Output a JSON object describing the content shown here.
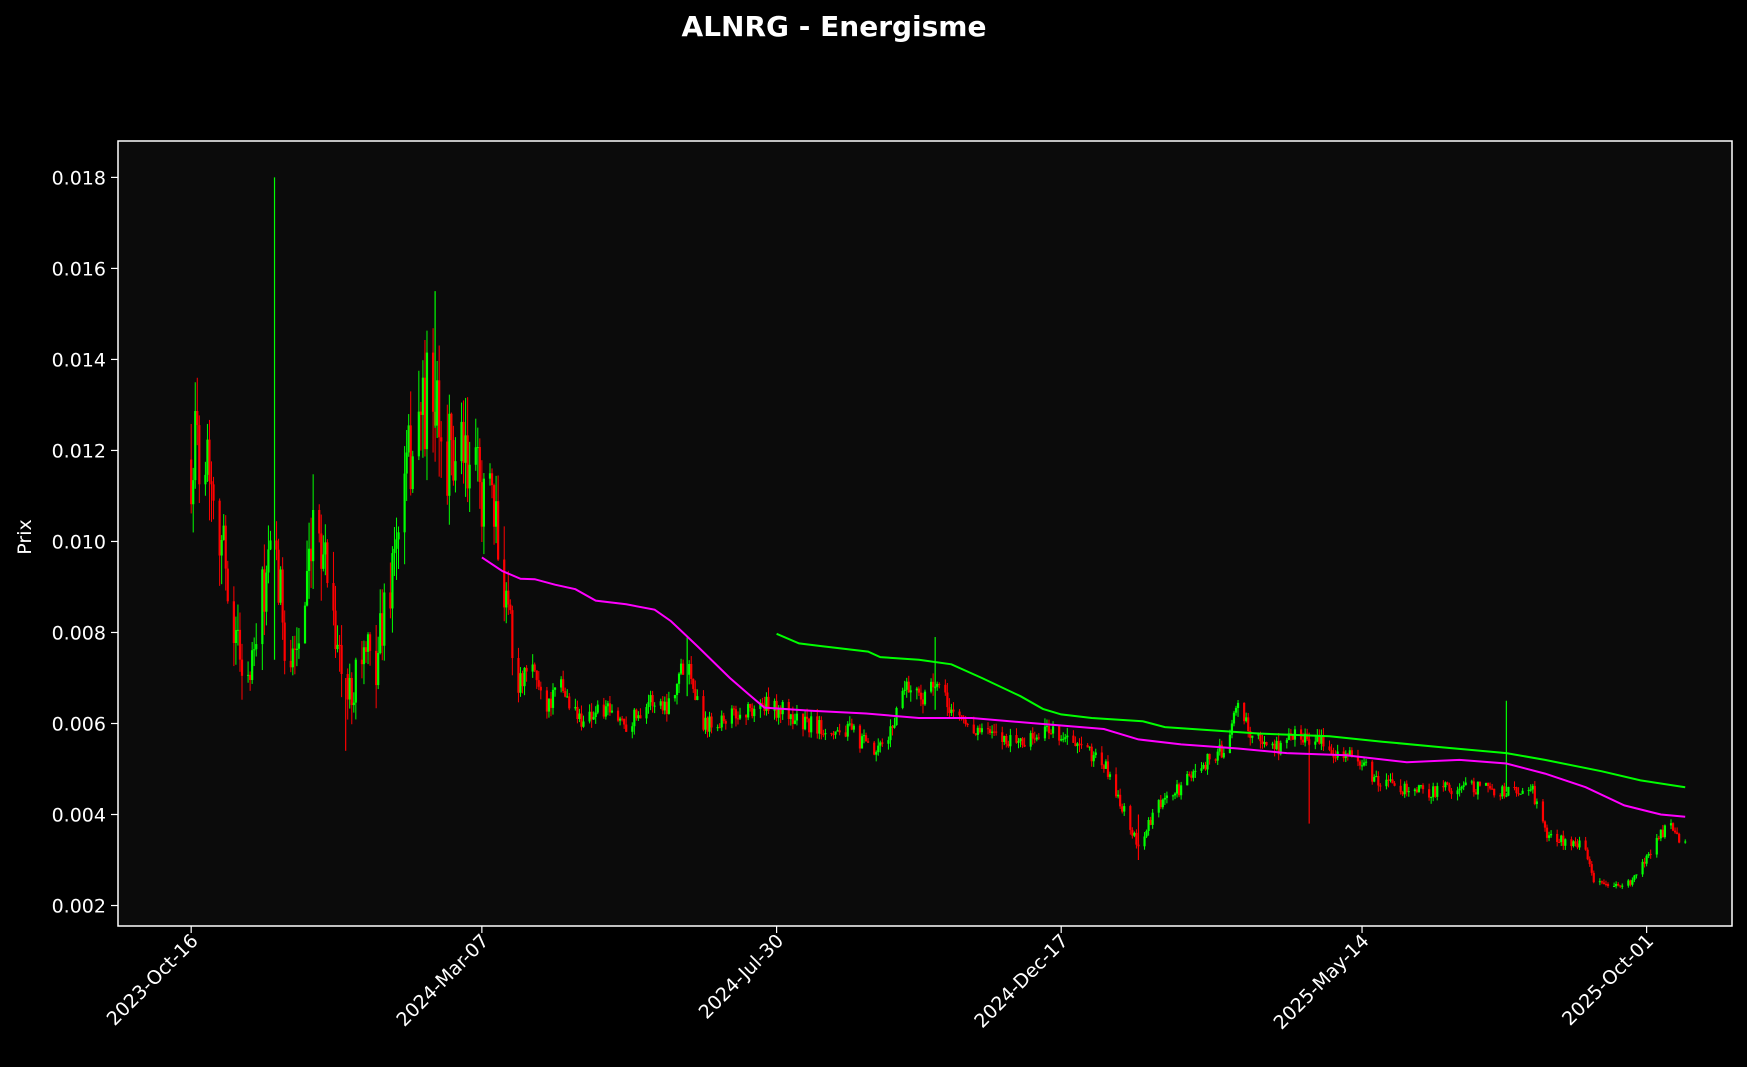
{
  "chart_data": {
    "type": "candlestick",
    "title": "ALNRG - Energisme",
    "ylabel": "Prix",
    "xlabel": "",
    "x_ticks": [
      "2023-Oct-16",
      "2024-Mar-07",
      "2024-Jul-30",
      "2024-Dec-17",
      "2025-May-14",
      "2025-Oct-01"
    ],
    "x_range": [
      "2023-Sep-10",
      "2025-Nov-12"
    ],
    "ylim": [
      0.00155,
      0.0188
    ],
    "y_ticks": [
      0.002,
      0.004,
      0.006,
      0.008,
      0.01,
      0.012,
      0.014,
      0.016,
      0.018
    ],
    "grid": false,
    "colors": {
      "background": "#000000",
      "plot_background": "#0b0b0b",
      "up": "#00ff00",
      "down": "#ff0000",
      "sma_short": "#ff00ff",
      "sma_long": "#00ff00",
      "axes": "#ffffff"
    },
    "series": [
      {
        "kind": "price_path",
        "points": [
          [
            "2023-Oct-16",
            0.0118
          ],
          [
            "2023-Oct-20",
            0.0123
          ],
          [
            "2023-Oct-25",
            0.0119
          ],
          [
            "2023-Oct-31",
            0.0101
          ],
          [
            "2023-Nov-07",
            0.0079
          ],
          [
            "2023-Nov-14",
            0.0069
          ],
          [
            "2023-Nov-21",
            0.009
          ],
          [
            "2023-Nov-26",
            0.0097
          ],
          [
            "2023-Dec-03",
            0.0074
          ],
          [
            "2023-Dec-10",
            0.008
          ],
          [
            "2023-Dec-17",
            0.0106
          ],
          [
            "2023-Dec-24",
            0.009
          ],
          [
            "2023-Dec-31",
            0.0063
          ],
          [
            "2024-Jan-07",
            0.0076
          ],
          [
            "2024-Jan-14",
            0.0072
          ],
          [
            "2024-Jan-22",
            0.0092
          ],
          [
            "2024-Jan-28",
            0.0108
          ],
          [
            "2024-Feb-03",
            0.0125
          ],
          [
            "2024-Feb-10",
            0.0132
          ],
          [
            "2024-Feb-17",
            0.012
          ],
          [
            "2024-Feb-24",
            0.0118
          ],
          [
            "2024-Mar-02",
            0.0114
          ],
          [
            "2024-Mar-09",
            0.0112
          ],
          [
            "2024-Mar-16",
            0.0097
          ],
          [
            "2024-Mar-21",
            0.0085
          ],
          [
            "2024-Mar-24",
            0.0068
          ],
          [
            "2024-Apr-01",
            0.0072
          ],
          [
            "2024-Apr-08",
            0.0064
          ],
          [
            "2024-Apr-15",
            0.0068
          ],
          [
            "2024-Apr-24",
            0.0061
          ],
          [
            "2024-May-05",
            0.0063
          ],
          [
            "2024-May-18",
            0.006
          ],
          [
            "2024-May-28",
            0.0065
          ],
          [
            "2024-Jun-06",
            0.0064
          ],
          [
            "2024-Jun-16",
            0.0075
          ],
          [
            "2024-Jun-24",
            0.006
          ],
          [
            "2024-Jul-02",
            0.0061
          ],
          [
            "2024-Jul-12",
            0.0062
          ],
          [
            "2024-Jul-22",
            0.0064
          ],
          [
            "2024-Aug-01",
            0.0063
          ],
          [
            "2024-Aug-12",
            0.006
          ],
          [
            "2024-Aug-24",
            0.0059
          ],
          [
            "2024-Sep-05",
            0.0058
          ],
          [
            "2024-Sep-17",
            0.0053
          ],
          [
            "2024-Sep-24",
            0.0058
          ],
          [
            "2024-Oct-01",
            0.0069
          ],
          [
            "2024-Oct-09",
            0.0066
          ],
          [
            "2024-Oct-16",
            0.0068
          ],
          [
            "2024-Oct-24",
            0.0063
          ],
          [
            "2024-Nov-03",
            0.0059
          ],
          [
            "2024-Nov-15",
            0.0057
          ],
          [
            "2024-Nov-30",
            0.0056
          ],
          [
            "2024-Dec-12",
            0.0059
          ],
          [
            "2024-Dec-24",
            0.0055
          ],
          [
            "2025-Jan-06",
            0.0052
          ],
          [
            "2025-Jan-14",
            0.0044
          ],
          [
            "2025-Jan-24",
            0.0033
          ],
          [
            "2025-Feb-03",
            0.0042
          ],
          [
            "2025-Feb-14",
            0.0046
          ],
          [
            "2025-Feb-24",
            0.0051
          ],
          [
            "2025-Mar-06",
            0.0054
          ],
          [
            "2025-Mar-14",
            0.0063
          ],
          [
            "2025-Mar-24",
            0.0056
          ],
          [
            "2025-Apr-03",
            0.0055
          ],
          [
            "2025-Apr-13",
            0.0058
          ],
          [
            "2025-Apr-22",
            0.0056
          ],
          [
            "2025-May-02",
            0.0054
          ],
          [
            "2025-May-12",
            0.0052
          ],
          [
            "2025-May-22",
            0.0047
          ],
          [
            "2025-Jun-02",
            0.0046
          ],
          [
            "2025-Jun-14",
            0.0045
          ],
          [
            "2025-Jun-28",
            0.0046
          ],
          [
            "2025-Jul-10",
            0.0046
          ],
          [
            "2025-Jul-24",
            0.0045
          ],
          [
            "2025-Aug-06",
            0.0045
          ],
          [
            "2025-Aug-12",
            0.0036
          ],
          [
            "2025-Aug-22",
            0.0034
          ],
          [
            "2025-Aug-31",
            0.0033
          ],
          [
            "2025-Sep-05",
            0.0026
          ],
          [
            "2025-Sep-12",
            0.0024
          ],
          [
            "2025-Sep-24",
            0.0025
          ],
          [
            "2025-Oct-02",
            0.0031
          ],
          [
            "2025-Oct-08",
            0.0036
          ],
          [
            "2025-Oct-14",
            0.0037
          ],
          [
            "2025-Oct-20",
            0.0033
          ]
        ]
      },
      {
        "kind": "spike",
        "points": [
          [
            "2023-Nov-26",
            0.018,
            0.0074
          ],
          [
            "2024-Feb-13",
            0.0155,
            0.0125
          ],
          [
            "2024-Jun-16",
            0.0079,
            0.0066
          ],
          [
            "2024-Oct-16",
            0.0079,
            0.0063
          ],
          [
            "2025-Apr-18",
            0.0038,
            0.0058
          ],
          [
            "2025-Jul-24",
            0.0065,
            0.0045
          ],
          [
            "2023-Dec-31",
            0.0054,
            0.007
          ],
          [
            "2025-Jan-24",
            0.003,
            0.004
          ]
        ]
      },
      {
        "name": "",
        "kind": "sma_short",
        "points": [
          [
            "2024-Mar-07",
            0.00965
          ],
          [
            "2024-Mar-17",
            0.00935
          ],
          [
            "2024-Mar-26",
            0.00918
          ],
          [
            "2024-Apr-02",
            0.00917
          ],
          [
            "2024-Apr-12",
            0.00905
          ],
          [
            "2024-Apr-22",
            0.00895
          ],
          [
            "2024-May-02",
            0.0087
          ],
          [
            "2024-May-17",
            0.00862
          ],
          [
            "2024-May-31",
            0.0085
          ],
          [
            "2024-Jun-08",
            0.00825
          ],
          [
            "2024-Jun-21",
            0.0077
          ],
          [
            "2024-Jul-07",
            0.007
          ],
          [
            "2024-Jul-16",
            0.00665
          ],
          [
            "2024-Jul-24",
            0.00635
          ],
          [
            "2024-Aug-16",
            0.00628
          ],
          [
            "2024-Sep-12",
            0.00622
          ],
          [
            "2024-Oct-08",
            0.00612
          ],
          [
            "2024-Nov-03",
            0.00612
          ],
          [
            "2024-Dec-05",
            0.006
          ],
          [
            "2025-Jan-07",
            0.00588
          ],
          [
            "2025-Jan-24",
            0.00565
          ],
          [
            "2025-Feb-14",
            0.00554
          ],
          [
            "2025-Mar-14",
            0.00545
          ],
          [
            "2025-Apr-07",
            0.00535
          ],
          [
            "2025-May-06",
            0.0053
          ],
          [
            "2025-Jun-05",
            0.00515
          ],
          [
            "2025-Jul-01",
            0.0052
          ],
          [
            "2025-Jul-24",
            0.00512
          ],
          [
            "2025-Aug-12",
            0.0049
          ],
          [
            "2025-Sep-01",
            0.0046
          ],
          [
            "2025-Sep-20",
            0.0042
          ],
          [
            "2025-Oct-08",
            0.004
          ],
          [
            "2025-Oct-20",
            0.00395
          ]
        ]
      },
      {
        "name": "",
        "kind": "sma_long",
        "points": [
          [
            "2024-Jul-30",
            0.00797
          ],
          [
            "2024-Aug-10",
            0.00776
          ],
          [
            "2024-Aug-21",
            0.0077
          ],
          [
            "2024-Sep-13",
            0.00758
          ],
          [
            "2024-Sep-19",
            0.00746
          ],
          [
            "2024-Oct-08",
            0.0074
          ],
          [
            "2024-Oct-24",
            0.0073
          ],
          [
            "2024-Nov-08",
            0.007
          ],
          [
            "2024-Nov-27",
            0.0066
          ],
          [
            "2024-Dec-08",
            0.00632
          ],
          [
            "2024-Dec-17",
            0.0062
          ],
          [
            "2025-Jan-01",
            0.00612
          ],
          [
            "2025-Jan-26",
            0.00605
          ],
          [
            "2025-Feb-06",
            0.00592
          ],
          [
            "2025-Mar-24",
            0.00578
          ],
          [
            "2025-Apr-28",
            0.00572
          ],
          [
            "2025-May-24",
            0.0056
          ],
          [
            "2025-Jun-22",
            0.00548
          ],
          [
            "2025-Jul-24",
            0.00535
          ],
          [
            "2025-Aug-12",
            0.0052
          ],
          [
            "2025-Sep-09",
            0.00495
          ],
          [
            "2025-Sep-28",
            0.00475
          ],
          [
            "2025-Oct-20",
            0.0046
          ]
        ]
      }
    ]
  }
}
